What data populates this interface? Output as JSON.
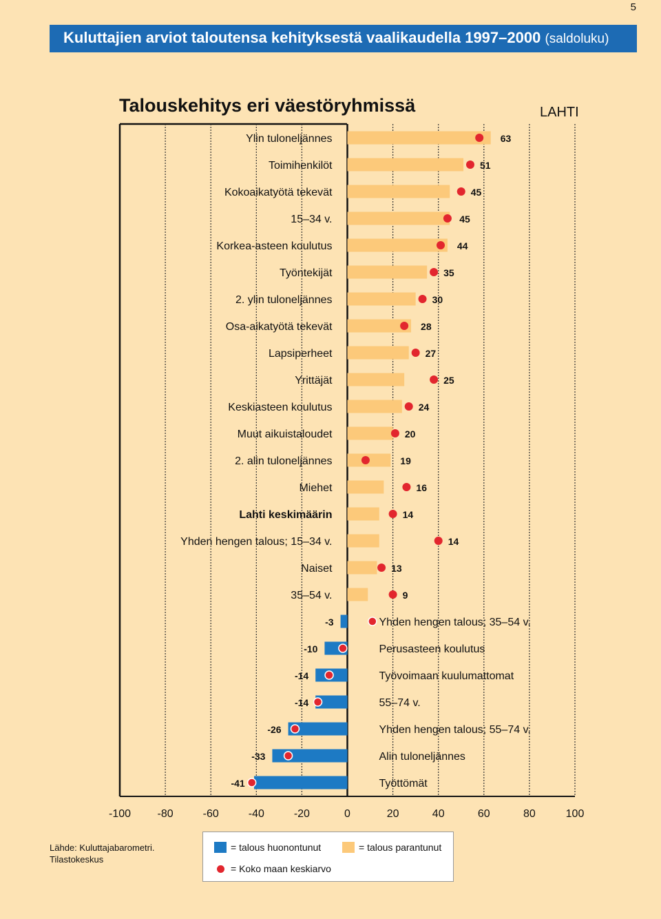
{
  "page_number": "5",
  "header": {
    "title": "Kuluttajien arviot taloutensa kehityksestä vaalikaudella 1997–2000",
    "unit": "(saldoluku)"
  },
  "region": "LAHTI",
  "legend": {
    "negative": "= talous huonontunut",
    "positive": "= talous parantunut",
    "average": "= Koko maan keskiarvo"
  },
  "source": {
    "line1": "Lähde: Kuluttajabarometri.",
    "line2": "Tilastokeskus"
  },
  "colors": {
    "positive": "#fcc97a",
    "negative": "#1d7ac4",
    "dot": "#e2262e",
    "background": "#fde3b4",
    "header": "#1d6bb4"
  },
  "chart_data": {
    "type": "bar",
    "orientation": "horizontal",
    "title": "Talouskehitys eri väestöryhmissä",
    "xlim": [
      -100,
      100
    ],
    "xticks": [
      -100,
      -80,
      -60,
      -40,
      -20,
      0,
      20,
      40,
      60,
      80,
      100
    ],
    "series": [
      {
        "name": "Lahti",
        "role": "bar"
      },
      {
        "name": "Koko maan keskiarvo",
        "role": "dot"
      }
    ],
    "categories": [
      {
        "label": "Ylin tuloneljännes",
        "value": 63,
        "national": 58
      },
      {
        "label": "Toimihenkilöt",
        "value": 51,
        "national": 54
      },
      {
        "label": "Kokoaikatyötä tekevät",
        "value": 45,
        "national": 50
      },
      {
        "label": "15–34 v.",
        "value": 45,
        "national": 44
      },
      {
        "label": "Korkea-asteen koulutus",
        "value": 44,
        "national": 41
      },
      {
        "label": "Työntekijät",
        "value": 35,
        "national": 38
      },
      {
        "label": "2. ylin tuloneljännes",
        "value": 30,
        "national": 33
      },
      {
        "label": "Osa-aikatyötä tekevät",
        "value": 28,
        "national": 25
      },
      {
        "label": "Lapsiperheet",
        "value": 27,
        "national": 30
      },
      {
        "label": "Yrittäjät",
        "value": 25,
        "national": 38
      },
      {
        "label": "Keskiasteen koulutus",
        "value": 24,
        "national": 27
      },
      {
        "label": "Muut aikuistaloudet",
        "value": 20,
        "national": 21
      },
      {
        "label": "2. alin tuloneljännes",
        "value": 19,
        "national": 8
      },
      {
        "label": "Miehet",
        "value": 16,
        "national": 26
      },
      {
        "label": "Lahti keskimäärin",
        "value": 14,
        "national": 20,
        "bold": true
      },
      {
        "label": "Yhden hengen talous; 15–34 v.",
        "value": 14,
        "national": 40
      },
      {
        "label": "Naiset",
        "value": 13,
        "national": 15
      },
      {
        "label": "35–54 v.",
        "value": 9,
        "national": 20
      },
      {
        "label": "Yhden hengen talous; 35–54 v.",
        "value": -3,
        "national": 11
      },
      {
        "label": "Perusasteen koulutus",
        "value": -10,
        "national": -2
      },
      {
        "label": "Työvoimaan kuulumattomat",
        "value": -14,
        "national": -8
      },
      {
        "label": "55–74 v.",
        "value": -14,
        "national": -13
      },
      {
        "label": "Yhden hengen talous; 55–74 v.",
        "value": -26,
        "national": -23
      },
      {
        "label": "Alin tuloneljännes",
        "value": -33,
        "national": -26
      },
      {
        "label": "Työttömät",
        "value": -41,
        "national": -42
      }
    ]
  }
}
